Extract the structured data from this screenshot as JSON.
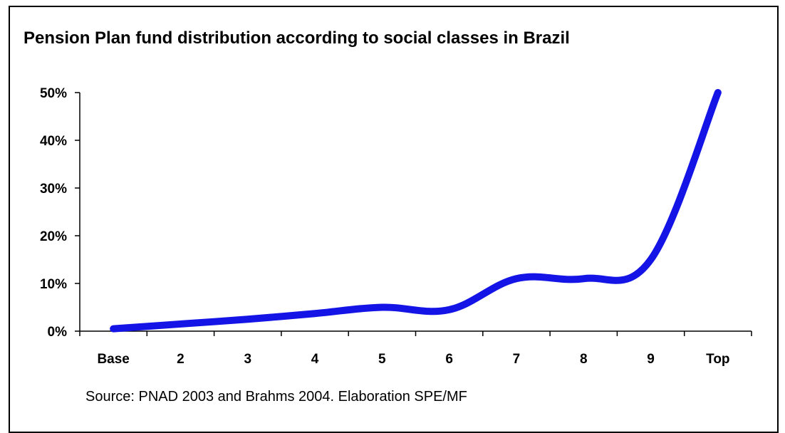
{
  "chart_data": {
    "type": "line",
    "title": "Pension Plan fund distribution according to social classes in Brazil",
    "xlabel": "",
    "ylabel": "",
    "categories": [
      "Base",
      "2",
      "3",
      "4",
      "5",
      "6",
      "7",
      "8",
      "9",
      "Top"
    ],
    "series": [
      {
        "values": [
          0.5,
          1.5,
          2.5,
          3.7,
          5.0,
          4.5,
          11.0,
          11.0,
          15.0,
          50.0
        ]
      }
    ],
    "ylim": [
      0,
      50
    ],
    "yticks": [
      "0%",
      "10%",
      "20%",
      "30%",
      "40%",
      "50%"
    ],
    "grid": false,
    "legend": "none",
    "line_color": "#1414e6",
    "source": "Source: PNAD 2003 and Brahms 2004. Elaboration SPE/MF"
  }
}
